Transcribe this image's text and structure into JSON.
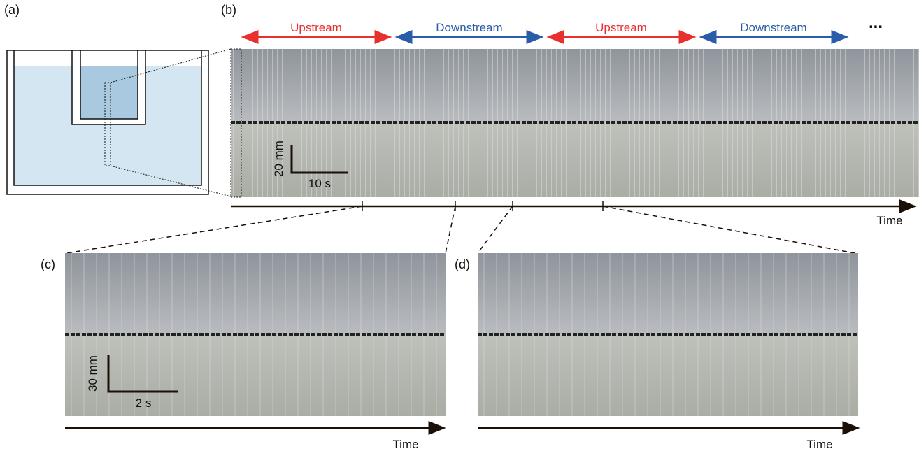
{
  "panels": {
    "a": {
      "label": "(a)"
    },
    "b": {
      "label": "(b)",
      "phases": [
        "Upstream",
        "Downstream",
        "Upstream",
        "Downstream"
      ],
      "ellipsis": "...",
      "scale_bar": {
        "vertical": "20 mm",
        "horizontal": "10 s"
      },
      "axis_label": "Time"
    },
    "c": {
      "label": "(c)",
      "scale_bar": {
        "vertical": "30 mm",
        "horizontal": "2 s"
      },
      "axis_label": "Time"
    },
    "d": {
      "label": "(d)",
      "axis_label": "Time"
    }
  }
}
